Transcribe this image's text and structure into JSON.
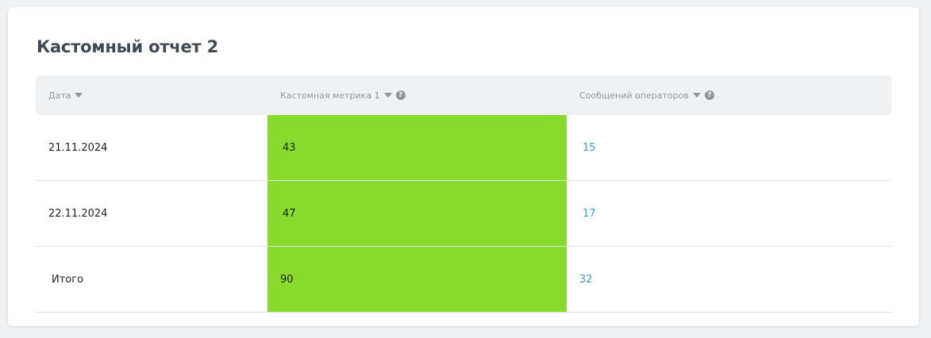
{
  "report": {
    "title": "Кастомный отчет 2",
    "columns": [
      {
        "label": "Дата",
        "sort_icon": "caret-down-icon",
        "help": false
      },
      {
        "label": "Кастомная метрика 1",
        "sort_icon": "caret-down-icon",
        "help": true
      },
      {
        "label": "Сообщений операторов",
        "sort_icon": "caret-down-icon",
        "help": true
      }
    ],
    "rows": [
      {
        "date": "21.11.2024",
        "metric": "43",
        "messages": "15"
      },
      {
        "date": "22.11.2024",
        "metric": "47",
        "messages": "17"
      }
    ],
    "total": {
      "label": "Итого",
      "metric": "90",
      "messages": "32"
    },
    "colors": {
      "highlight": "#88db2c",
      "link": "#3a9bd5",
      "title": "#3d4b55",
      "header_bg": "#eef2f4"
    }
  }
}
